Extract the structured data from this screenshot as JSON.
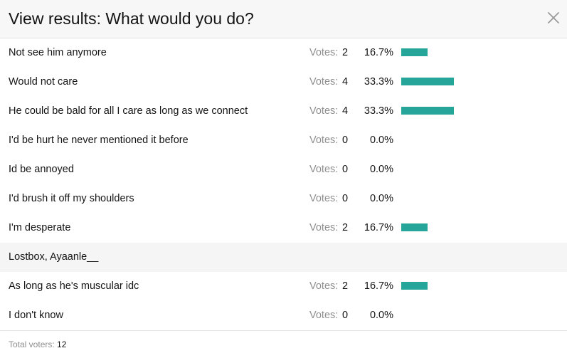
{
  "dialog": {
    "title": "View results: What would you do?",
    "close_icon": "close-icon"
  },
  "votes_label": "Votes:",
  "accent_color": "#26a69a",
  "options": [
    {
      "label": "Not see him anymore",
      "votes": "2",
      "percent": "16.7%",
      "fraction": 0.167
    },
    {
      "label": "Would not care",
      "votes": "4",
      "percent": "33.3%",
      "fraction": 0.333
    },
    {
      "label": "He could be bald for all I care as long as we connect",
      "votes": "4",
      "percent": "33.3%",
      "fraction": 0.333
    },
    {
      "label": "I'd be hurt he never mentioned it before",
      "votes": "0",
      "percent": "0.0%",
      "fraction": 0
    },
    {
      "label": "Id be annoyed",
      "votes": "0",
      "percent": "0.0%",
      "fraction": 0
    },
    {
      "label": "I'd brush it off my shoulders",
      "votes": "0",
      "percent": "0.0%",
      "fraction": 0
    },
    {
      "label": "I'm desperate",
      "votes": "2",
      "percent": "16.7%",
      "fraction": 0.167,
      "voters": "Lostbox, Ayaanle__"
    },
    {
      "label": "As long as he's muscular idc",
      "votes": "2",
      "percent": "16.7%",
      "fraction": 0.167
    },
    {
      "label": "I don't know",
      "votes": "0",
      "percent": "0.0%",
      "fraction": 0
    }
  ],
  "footer": {
    "total_label": "Total voters:",
    "total_value": "12"
  }
}
